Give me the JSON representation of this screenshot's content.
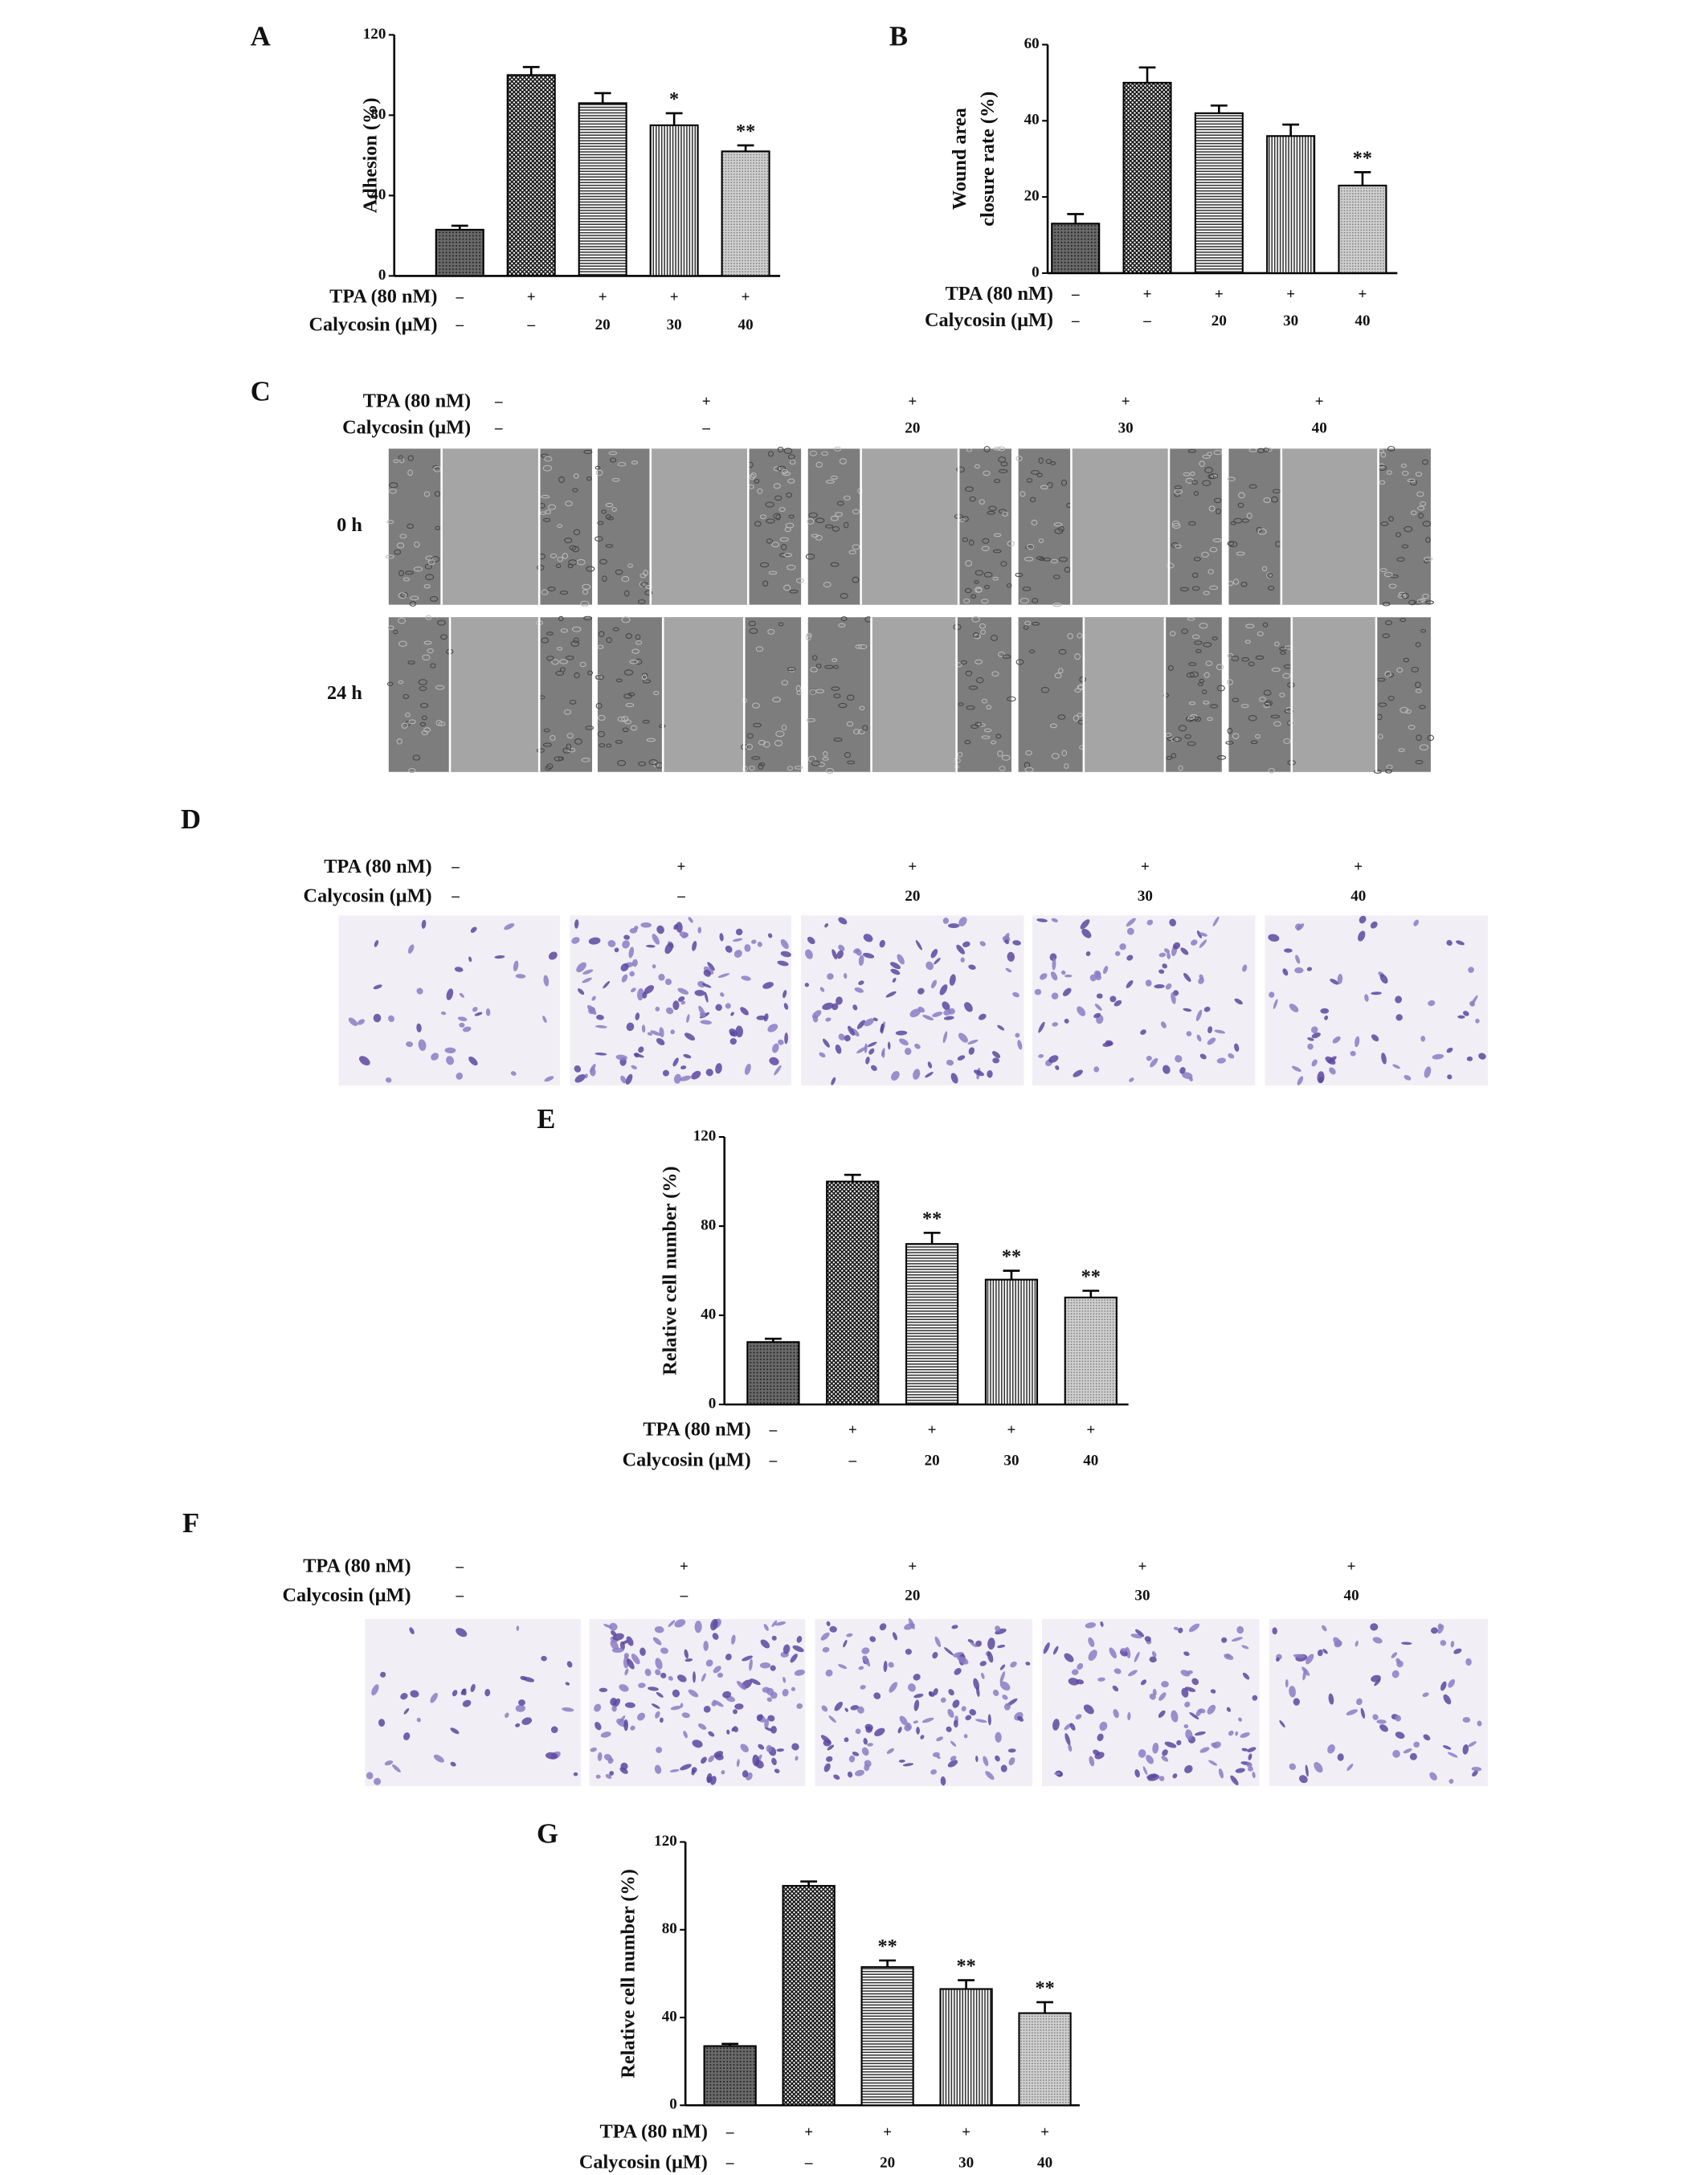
{
  "chart_data": [
    {
      "type": "bar",
      "label": "A",
      "ylabel": [
        "Adhesion (%)"
      ],
      "conditions": [
        {
          "label": "TPA (80 nM)",
          "values": [
            "–",
            "+",
            "+",
            "+",
            "+"
          ]
        },
        {
          "label": "Calycosin (μM)",
          "values": [
            "–",
            "–",
            "20",
            "30",
            "40"
          ]
        }
      ],
      "values": [
        23,
        100,
        86,
        75,
        62
      ],
      "errors": [
        2,
        4,
        5,
        6,
        3
      ],
      "annotations": [
        null,
        null,
        null,
        "*",
        "**"
      ],
      "ylim": [
        0,
        120
      ],
      "yticks": [
        0,
        40,
        80,
        120
      ]
    },
    {
      "type": "bar",
      "label": "B",
      "ylabel": [
        "Wound area",
        "closure rate (%)"
      ],
      "conditions": [
        {
          "label": "TPA (80 nM)",
          "values": [
            "–",
            "+",
            "+",
            "+",
            "+"
          ]
        },
        {
          "label": "Calycosin (μM)",
          "values": [
            "–",
            "–",
            "20",
            "30",
            "40"
          ]
        }
      ],
      "values": [
        13,
        50,
        42,
        36,
        23
      ],
      "errors": [
        2.5,
        4,
        2,
        3,
        3.5
      ],
      "annotations": [
        null,
        null,
        null,
        null,
        "**"
      ],
      "ylim": [
        0,
        60
      ],
      "yticks": [
        0,
        20,
        40,
        60
      ]
    },
    {
      "type": "bar",
      "label": "E",
      "ylabel": [
        "Relative cell number (%)"
      ],
      "conditions": [
        {
          "label": "TPA (80 nM)",
          "values": [
            "–",
            "+",
            "+",
            "+",
            "+"
          ]
        },
        {
          "label": "Calycosin (μM)",
          "values": [
            "–",
            "–",
            "20",
            "30",
            "40"
          ]
        }
      ],
      "values": [
        28,
        100,
        72,
        56,
        48
      ],
      "errors": [
        1.5,
        3,
        5,
        4,
        3
      ],
      "annotations": [
        null,
        null,
        "**",
        "**",
        "**"
      ],
      "ylim": [
        0,
        120
      ],
      "yticks": [
        0,
        40,
        80,
        120
      ]
    },
    {
      "type": "bar",
      "label": "G",
      "ylabel": [
        "Relative cell number (%)"
      ],
      "conditions": [
        {
          "label": "TPA (80 nM)",
          "values": [
            "–",
            "+",
            "+",
            "+",
            "+"
          ]
        },
        {
          "label": "Calycosin (μM)",
          "values": [
            "–",
            "–",
            "20",
            "30",
            "40"
          ]
        }
      ],
      "values": [
        27,
        100,
        63,
        53,
        42
      ],
      "errors": [
        1,
        2,
        3,
        4,
        5
      ],
      "annotations": [
        null,
        null,
        "**",
        "**",
        "**"
      ],
      "ylim": [
        0,
        120
      ],
      "yticks": [
        0,
        40,
        80,
        120
      ]
    }
  ],
  "panels": [
    {
      "label": "C",
      "conditions": [
        {
          "label": "TPA (80 nM)",
          "values": [
            "–",
            "+",
            "+",
            "+",
            "+"
          ]
        },
        {
          "label": "Calycosin (μM)",
          "values": [
            "–",
            "–",
            "20",
            "30",
            "40"
          ]
        }
      ],
      "rows": [
        "0 h",
        "24 h"
      ]
    },
    {
      "label": "D",
      "conditions": [
        {
          "label": "TPA (80 nM)",
          "values": [
            "–",
            "+",
            "+",
            "+",
            "+"
          ]
        },
        {
          "label": "Calycosin (μM)",
          "values": [
            "–",
            "–",
            "20",
            "30",
            "40"
          ]
        }
      ]
    },
    {
      "label": "F",
      "conditions": [
        {
          "label": "TPA (80 nM)",
          "values": [
            "–",
            "+",
            "+",
            "+",
            "+"
          ]
        },
        {
          "label": "Calycosin (μM)",
          "values": [
            "–",
            "–",
            "20",
            "30",
            "40"
          ]
        }
      ]
    }
  ]
}
